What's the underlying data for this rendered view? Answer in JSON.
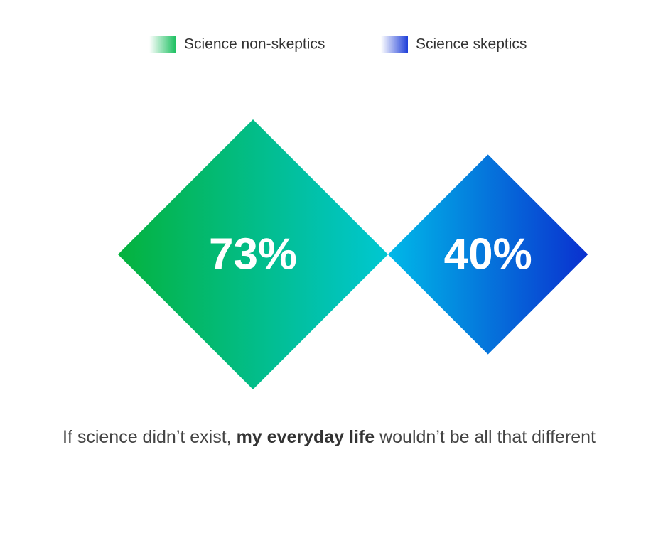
{
  "chart_data": {
    "type": "diamond",
    "series": [
      {
        "name": "Science non-skeptics",
        "color": "#19bf5e",
        "gradient": [
          "#05b23d",
          "#00c7d2"
        ],
        "values": [
          73
        ],
        "value_labels": [
          "73%"
        ]
      },
      {
        "name": "Science skeptics",
        "color": "#1f3fd9",
        "gradient": [
          "#00b9e8",
          "#0a30cf"
        ],
        "values": [
          40
        ],
        "value_labels": [
          "40%"
        ]
      }
    ],
    "caption": [
      "If science didn’t exist, ",
      "my everyday life",
      " wouldn’t be all that different"
    ]
  }
}
